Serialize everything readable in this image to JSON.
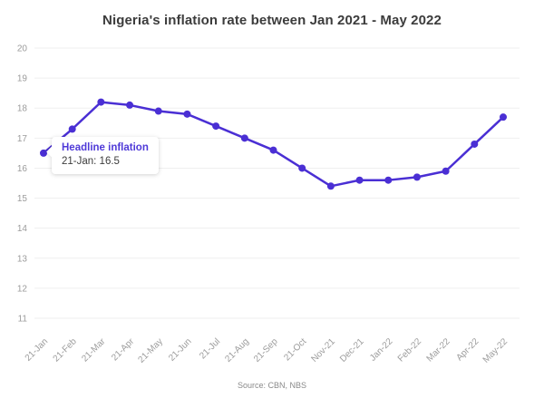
{
  "title": "Nigeria's inflation rate between Jan 2021 - May 2022",
  "source": "Source: CBN, NBS",
  "tooltip": {
    "series_label": "Headline inflation",
    "value_label": "21-Jan: 16.5"
  },
  "colors": {
    "line": "#4a2fd4",
    "marker": "#4a2fd4",
    "grid": "#efefef",
    "axis_text": "#9b9b9b",
    "title_text": "#3c3c3c",
    "source_text": "#8a8a8a",
    "tooltip_series": "#4f3ad8",
    "tooltip_value": "#3c3c3c"
  },
  "chart_data": {
    "type": "line",
    "title": "Nigeria's inflation rate between Jan 2021 - May 2022",
    "categories": [
      "21-Jan",
      "21-Feb",
      "21-Mar",
      "21-Apr",
      "21-May",
      "21-Jun",
      "21-Jul",
      "21-Aug",
      "21-Sep",
      "21-Oct",
      "Nov-21",
      "Dec-21",
      "Jan-22",
      "Feb-22",
      "Mar-22",
      "Apr-22",
      "May-22"
    ],
    "series": [
      {
        "name": "Headline inflation",
        "values": [
          16.5,
          17.3,
          18.2,
          18.1,
          17.9,
          17.8,
          17.4,
          17.0,
          16.6,
          16.0,
          15.4,
          15.6,
          15.6,
          15.7,
          15.9,
          16.8,
          17.7
        ]
      }
    ],
    "xlabel": "",
    "ylabel": "",
    "ylim": [
      11,
      20
    ],
    "yticks": [
      20,
      19,
      18,
      17,
      16,
      15,
      14,
      13,
      12,
      11
    ],
    "grid": true,
    "legend_position": "none",
    "annotation": "tooltip shown on first data point"
  }
}
